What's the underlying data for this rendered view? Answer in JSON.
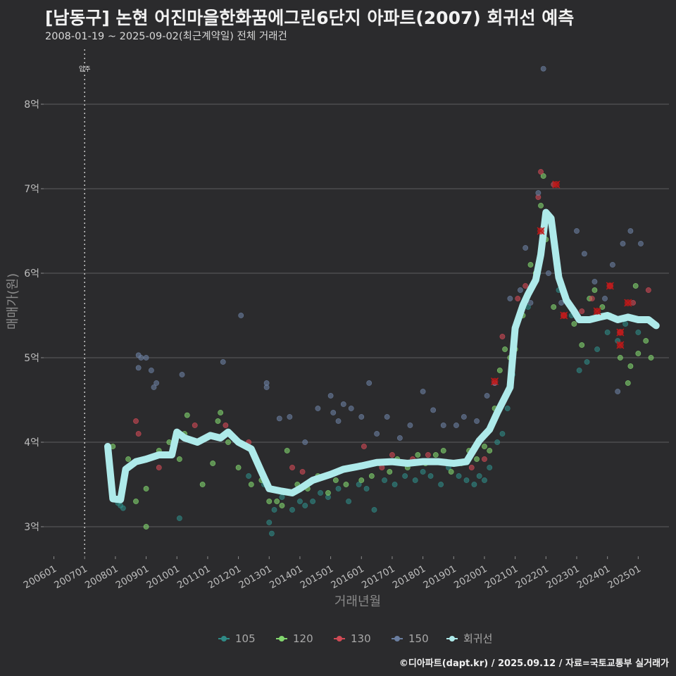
{
  "header": {
    "title": "[남동구] 논현 어진마을한화꿈에그린6단지 아파트(2007) 회귀선 예측",
    "subtitle": "2008-01-19 ~ 2025-09-02(최근계약일) 전체 거래건"
  },
  "credit": "©디아파트(dapt.kr) / 2025.09.12 / 자료=국토교통부 실거래가",
  "chart_data": {
    "type": "scatter",
    "xlabel": "거래년월",
    "ylabel": "매매가(원)",
    "ylim": [
      2.65,
      8.65
    ],
    "xlim": [
      "2005-09",
      "2026-01"
    ],
    "y_ticks": [
      {
        "value": 3,
        "label": "3억"
      },
      {
        "value": 4,
        "label": "4억"
      },
      {
        "value": 5,
        "label": "5억"
      },
      {
        "value": 6,
        "label": "6억"
      },
      {
        "value": 7,
        "label": "7억"
      },
      {
        "value": 8,
        "label": "8억"
      }
    ],
    "x_ticks": [
      "200601",
      "200701",
      "200801",
      "200901",
      "201001",
      "201101",
      "201201",
      "201301",
      "201401",
      "201501",
      "201601",
      "201701",
      "201801",
      "201901",
      "202001",
      "202101",
      "202201",
      "202301",
      "202401",
      "202501"
    ],
    "annotation": {
      "label": "입주",
      "x": "2007-01"
    },
    "legend_position": "bottom",
    "colors": {
      "105": "#2f8a86",
      "120": "#82d66e",
      "130": "#d04a55",
      "150": "#6a7ea0",
      "회귀선": "#aeeaea",
      "highlight": "#c01818"
    },
    "legend": [
      "105",
      "120",
      "130",
      "150",
      "회귀선"
    ],
    "series": [
      {
        "name": "105",
        "points": [
          [
            "2008-02",
            3.28
          ],
          [
            "2008-03",
            3.25
          ],
          [
            "2008-04",
            3.22
          ],
          [
            "2010-02",
            3.1
          ],
          [
            "2012-05",
            3.6
          ],
          [
            "2012-11",
            3.5
          ],
          [
            "2013-01",
            3.05
          ],
          [
            "2013-02",
            2.92
          ],
          [
            "2013-03",
            3.2
          ],
          [
            "2013-06",
            3.35
          ],
          [
            "2013-10",
            3.2
          ],
          [
            "2014-01",
            3.3
          ],
          [
            "2014-03",
            3.25
          ],
          [
            "2014-06",
            3.3
          ],
          [
            "2014-09",
            3.4
          ],
          [
            "2014-12",
            3.35
          ],
          [
            "2015-04",
            3.45
          ],
          [
            "2015-08",
            3.3
          ],
          [
            "2015-12",
            3.5
          ],
          [
            "2016-03",
            3.45
          ],
          [
            "2016-06",
            3.2
          ],
          [
            "2016-10",
            3.55
          ],
          [
            "2017-02",
            3.5
          ],
          [
            "2017-06",
            3.6
          ],
          [
            "2017-10",
            3.55
          ],
          [
            "2018-01",
            3.65
          ],
          [
            "2018-04",
            3.6
          ],
          [
            "2018-08",
            3.5
          ],
          [
            "2018-11",
            3.7
          ],
          [
            "2019-03",
            3.6
          ],
          [
            "2019-06",
            3.55
          ],
          [
            "2019-09",
            3.5
          ],
          [
            "2019-11",
            3.6
          ],
          [
            "2020-01",
            3.55
          ],
          [
            "2020-03",
            3.7
          ],
          [
            "2020-06",
            4.0
          ],
          [
            "2020-08",
            4.1
          ],
          [
            "2020-10",
            4.4
          ],
          [
            "2020-12",
            4.8
          ],
          [
            "2021-06",
            5.6
          ],
          [
            "2021-10",
            6.0
          ],
          [
            "2022-06",
            5.8
          ],
          [
            "2022-11",
            5.5
          ],
          [
            "2023-02",
            4.85
          ],
          [
            "2023-05",
            4.95
          ],
          [
            "2023-09",
            5.1
          ],
          [
            "2024-01",
            5.3
          ],
          [
            "2024-05",
            5.2
          ],
          [
            "2024-08",
            5.4
          ],
          [
            "2025-01",
            5.3
          ]
        ]
      },
      {
        "name": "120",
        "points": [
          [
            "2007-12",
            3.95
          ],
          [
            "2008-06",
            3.8
          ],
          [
            "2008-09",
            3.3
          ],
          [
            "2009-01",
            3.45
          ],
          [
            "2009-01",
            3.0
          ],
          [
            "2009-06",
            3.9
          ],
          [
            "2009-10",
            4.0
          ],
          [
            "2010-02",
            3.8
          ],
          [
            "2010-04",
            4.1
          ],
          [
            "2010-05",
            4.32
          ],
          [
            "2010-11",
            3.5
          ],
          [
            "2011-03",
            3.75
          ],
          [
            "2011-05",
            4.25
          ],
          [
            "2011-06",
            4.35
          ],
          [
            "2011-09",
            4.0
          ],
          [
            "2012-01",
            3.7
          ],
          [
            "2012-06",
            3.5
          ],
          [
            "2012-10",
            3.55
          ],
          [
            "2013-01",
            3.3
          ],
          [
            "2013-04",
            3.3
          ],
          [
            "2013-06",
            3.25
          ],
          [
            "2013-08",
            3.9
          ],
          [
            "2013-12",
            3.5
          ],
          [
            "2014-04",
            3.45
          ],
          [
            "2014-08",
            3.6
          ],
          [
            "2014-12",
            3.4
          ],
          [
            "2015-03",
            3.55
          ],
          [
            "2015-07",
            3.5
          ],
          [
            "2015-10",
            3.7
          ],
          [
            "2016-01",
            3.55
          ],
          [
            "2016-05",
            3.6
          ],
          [
            "2016-08",
            3.75
          ],
          [
            "2016-12",
            3.65
          ],
          [
            "2017-03",
            3.8
          ],
          [
            "2017-07",
            3.7
          ],
          [
            "2017-11",
            3.85
          ],
          [
            "2018-02",
            3.75
          ],
          [
            "2018-06",
            3.85
          ],
          [
            "2018-09",
            3.9
          ],
          [
            "2018-12",
            3.65
          ],
          [
            "2019-04",
            3.75
          ],
          [
            "2019-07",
            3.9
          ],
          [
            "2019-10",
            3.8
          ],
          [
            "2020-01",
            3.95
          ],
          [
            "2020-03",
            3.9
          ],
          [
            "2020-05",
            4.4
          ],
          [
            "2020-07",
            4.85
          ],
          [
            "2020-09",
            5.1
          ],
          [
            "2020-11",
            5.0
          ],
          [
            "2021-01",
            5.1
          ],
          [
            "2021-04",
            5.5
          ],
          [
            "2021-07",
            6.1
          ],
          [
            "2021-09",
            6.0
          ],
          [
            "2021-11",
            6.8
          ],
          [
            "2021-12",
            7.15
          ],
          [
            "2022-01",
            6.4
          ],
          [
            "2022-04",
            5.6
          ],
          [
            "2022-09",
            5.7
          ],
          [
            "2022-12",
            5.4
          ],
          [
            "2023-03",
            5.15
          ],
          [
            "2023-06",
            5.7
          ],
          [
            "2023-08",
            5.8
          ],
          [
            "2023-11",
            5.6
          ],
          [
            "2024-02",
            5.5
          ],
          [
            "2024-06",
            5.0
          ],
          [
            "2024-09",
            4.7
          ],
          [
            "2024-10",
            4.9
          ],
          [
            "2025-01",
            5.05
          ],
          [
            "2025-04",
            5.2
          ],
          [
            "2025-06",
            5.0
          ],
          [
            "2024-12",
            5.85
          ]
        ]
      },
      {
        "name": "130",
        "points": [
          [
            "2008-09",
            4.25
          ],
          [
            "2008-10",
            4.1
          ],
          [
            "2009-06",
            3.7
          ],
          [
            "2010-08",
            4.2
          ],
          [
            "2011-08",
            4.2
          ],
          [
            "2012-05",
            4.0
          ],
          [
            "2013-10",
            3.7
          ],
          [
            "2014-02",
            3.65
          ],
          [
            "2016-02",
            3.95
          ],
          [
            "2016-09",
            3.7
          ],
          [
            "2017-01",
            3.85
          ],
          [
            "2017-09",
            3.8
          ],
          [
            "2018-03",
            3.85
          ],
          [
            "2018-10",
            3.75
          ],
          [
            "2019-08",
            3.7
          ],
          [
            "2020-01",
            3.8
          ],
          [
            "2020-05",
            4.7
          ],
          [
            "2020-08",
            5.25
          ],
          [
            "2021-02",
            5.7
          ],
          [
            "2021-05",
            5.85
          ],
          [
            "2021-10",
            6.9
          ],
          [
            "2021-11",
            7.2
          ],
          [
            "2022-04",
            7.05
          ],
          [
            "2022-08",
            5.5
          ],
          [
            "2023-03",
            5.55
          ],
          [
            "2023-07",
            5.7
          ],
          [
            "2024-02",
            5.85
          ],
          [
            "2024-06",
            5.3
          ],
          [
            "2024-11",
            5.65
          ],
          [
            "2025-05",
            5.8
          ]
        ]
      },
      {
        "name": "150",
        "points": [
          [
            "2008-10",
            5.03
          ],
          [
            "2008-11",
            5.0
          ],
          [
            "2008-10",
            4.88
          ],
          [
            "2009-01",
            5.0
          ],
          [
            "2009-03",
            4.85
          ],
          [
            "2009-04",
            4.65
          ],
          [
            "2009-05",
            4.7
          ],
          [
            "2010-03",
            4.8
          ],
          [
            "2011-07",
            4.95
          ],
          [
            "2012-02",
            5.5
          ],
          [
            "2012-12",
            4.65
          ],
          [
            "2012-12",
            4.7
          ],
          [
            "2013-05",
            4.28
          ],
          [
            "2013-09",
            4.3
          ],
          [
            "2014-03",
            4.0
          ],
          [
            "2014-08",
            4.4
          ],
          [
            "2015-01",
            4.55
          ],
          [
            "2015-02",
            4.35
          ],
          [
            "2015-04",
            4.25
          ],
          [
            "2015-06",
            4.45
          ],
          [
            "2015-09",
            4.4
          ],
          [
            "2016-01",
            4.3
          ],
          [
            "2016-04",
            4.7
          ],
          [
            "2016-07",
            4.1
          ],
          [
            "2016-11",
            4.3
          ],
          [
            "2017-04",
            4.05
          ],
          [
            "2017-08",
            4.2
          ],
          [
            "2018-01",
            4.6
          ],
          [
            "2018-05",
            4.38
          ],
          [
            "2018-09",
            4.2
          ],
          [
            "2019-02",
            4.2
          ],
          [
            "2019-05",
            4.3
          ],
          [
            "2019-10",
            4.25
          ],
          [
            "2020-02",
            4.55
          ],
          [
            "2020-05",
            4.7
          ],
          [
            "2020-11",
            5.7
          ],
          [
            "2021-03",
            5.8
          ],
          [
            "2021-05",
            6.3
          ],
          [
            "2021-07",
            5.65
          ],
          [
            "2021-10",
            6.95
          ],
          [
            "2021-12",
            8.42
          ],
          [
            "2022-02",
            6.0
          ],
          [
            "2022-07",
            5.65
          ],
          [
            "2023-01",
            6.5
          ],
          [
            "2023-04",
            6.23
          ],
          [
            "2023-08",
            5.9
          ],
          [
            "2023-12",
            5.7
          ],
          [
            "2024-03",
            6.1
          ],
          [
            "2024-07",
            6.35
          ],
          [
            "2024-05",
            4.6
          ],
          [
            "2024-10",
            6.5
          ],
          [
            "2025-02",
            6.35
          ],
          [
            "2025-07",
            5.4
          ]
        ]
      }
    ],
    "highlights": [
      [
        "2020-05",
        4.72
      ],
      [
        "2021-11",
        6.5
      ],
      [
        "2022-05",
        7.05
      ],
      [
        "2022-08",
        5.5
      ],
      [
        "2023-09",
        5.55
      ],
      [
        "2024-02",
        5.85
      ],
      [
        "2024-06",
        5.3
      ],
      [
        "2024-06",
        5.15
      ],
      [
        "2024-09",
        5.65
      ]
    ],
    "regression": {
      "name": "회귀선",
      "points": [
        [
          "2007-10",
          3.95
        ],
        [
          "2007-12",
          3.33
        ],
        [
          "2008-03",
          3.32
        ],
        [
          "2008-05",
          3.68
        ],
        [
          "2008-09",
          3.77
        ],
        [
          "2009-01",
          3.8
        ],
        [
          "2009-06",
          3.85
        ],
        [
          "2009-11",
          3.85
        ],
        [
          "2010-01",
          4.12
        ],
        [
          "2010-04",
          4.05
        ],
        [
          "2010-09",
          4.0
        ],
        [
          "2011-02",
          4.08
        ],
        [
          "2011-06",
          4.05
        ],
        [
          "2011-09",
          4.12
        ],
        [
          "2012-01",
          4.0
        ],
        [
          "2012-06",
          3.92
        ],
        [
          "2012-10",
          3.65
        ],
        [
          "2013-01",
          3.45
        ],
        [
          "2013-06",
          3.42
        ],
        [
          "2013-10",
          3.4
        ],
        [
          "2014-01",
          3.45
        ],
        [
          "2014-06",
          3.55
        ],
        [
          "2015-01",
          3.62
        ],
        [
          "2015-06",
          3.68
        ],
        [
          "2016-01",
          3.72
        ],
        [
          "2016-07",
          3.76
        ],
        [
          "2017-01",
          3.77
        ],
        [
          "2017-07",
          3.75
        ],
        [
          "2018-01",
          3.77
        ],
        [
          "2018-07",
          3.77
        ],
        [
          "2019-01",
          3.75
        ],
        [
          "2019-06",
          3.77
        ],
        [
          "2019-11",
          4.02
        ],
        [
          "2020-03",
          4.15
        ],
        [
          "2020-06",
          4.35
        ],
        [
          "2020-11",
          4.65
        ],
        [
          "2021-01",
          5.35
        ],
        [
          "2021-04",
          5.62
        ],
        [
          "2021-06",
          5.75
        ],
        [
          "2021-09",
          5.92
        ],
        [
          "2021-11",
          6.22
        ],
        [
          "2022-01",
          6.72
        ],
        [
          "2022-03",
          6.65
        ],
        [
          "2022-06",
          5.95
        ],
        [
          "2022-09",
          5.68
        ],
        [
          "2022-12",
          5.55
        ],
        [
          "2023-02",
          5.45
        ],
        [
          "2023-06",
          5.45
        ],
        [
          "2023-10",
          5.48
        ],
        [
          "2024-01",
          5.5
        ],
        [
          "2024-05",
          5.45
        ],
        [
          "2024-09",
          5.48
        ],
        [
          "2025-01",
          5.45
        ],
        [
          "2025-05",
          5.45
        ],
        [
          "2025-08",
          5.38
        ]
      ]
    }
  }
}
